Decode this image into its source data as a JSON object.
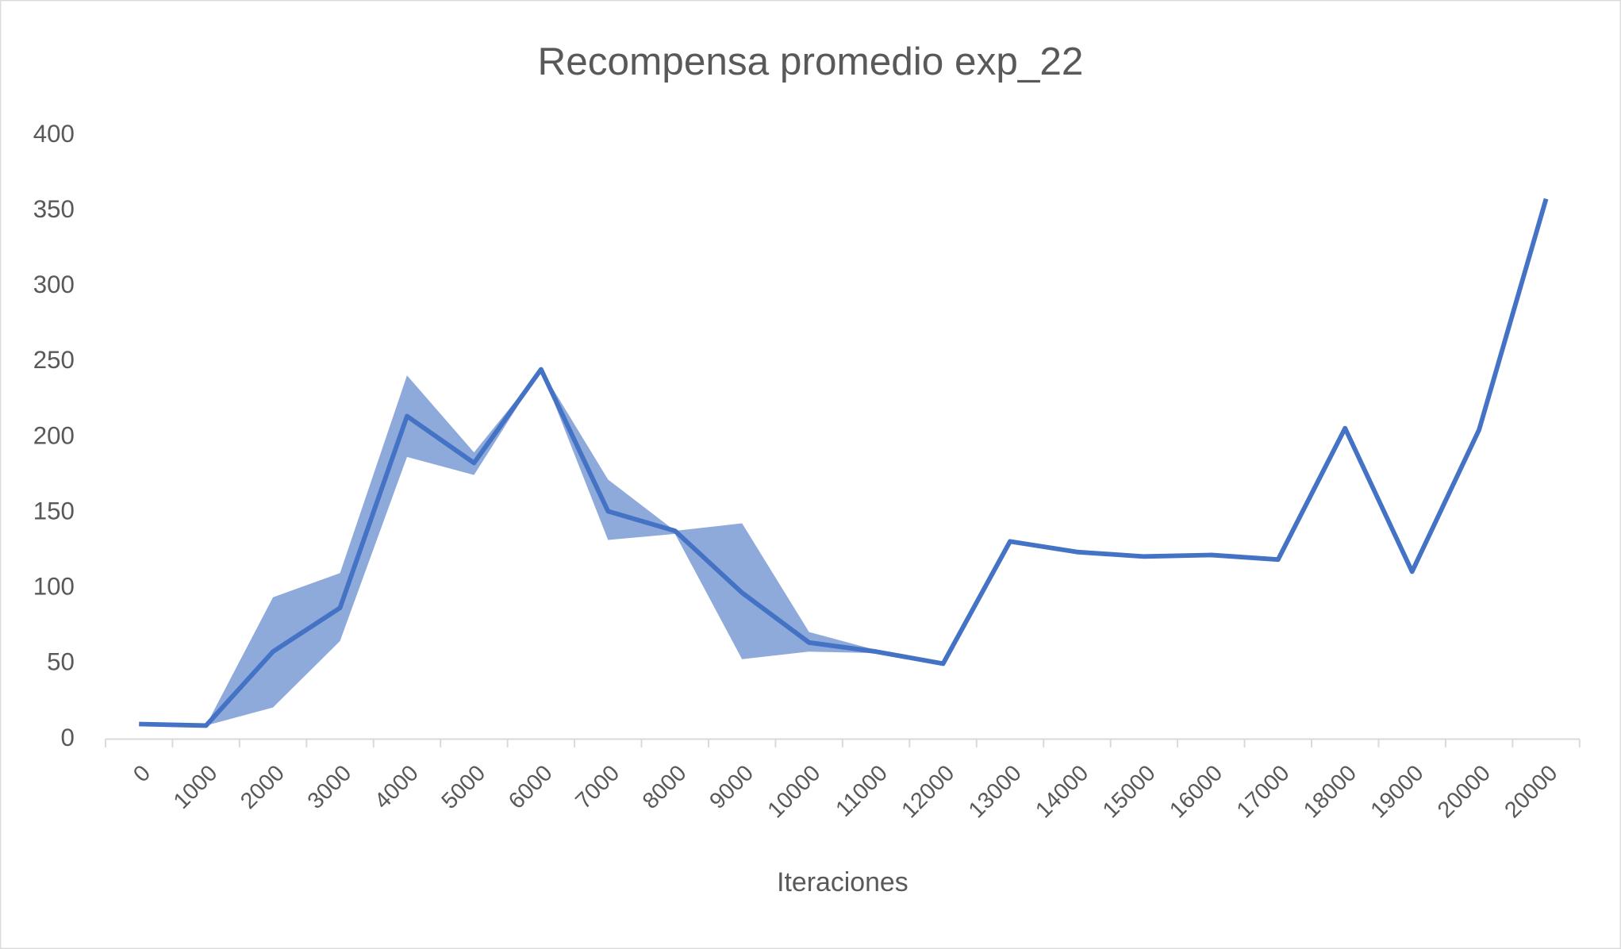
{
  "chart_data": {
    "type": "line",
    "title": "Recompensa promedio exp_22",
    "xlabel": "Iteraciones",
    "categories": [
      "0",
      "1000",
      "2000",
      "3000",
      "4000",
      "5000",
      "6000",
      "7000",
      "8000",
      "9000",
      "10000",
      "11000",
      "12000",
      "13000",
      "14000",
      "15000",
      "16000",
      "17000",
      "18000",
      "19000",
      "20000",
      "20000"
    ],
    "series": [
      {
        "color": "#4472c4",
        "values": [
          10,
          9,
          58,
          87,
          214,
          183,
          245,
          151,
          138,
          97,
          64,
          58,
          50,
          131,
          124,
          121,
          122,
          119,
          206,
          111,
          205,
          358
        ]
      }
    ],
    "band": {
      "color": "#8eaadb",
      "upper": [
        10,
        9,
        94,
        110,
        241,
        190,
        245,
        172,
        138,
        143,
        71,
        59,
        null,
        null,
        null,
        null,
        null,
        null,
        null,
        null,
        null,
        null
      ],
      "lower": [
        10,
        9,
        21,
        65,
        187,
        175,
        245,
        132,
        136,
        53,
        58,
        57,
        null,
        null,
        null,
        null,
        null,
        null,
        null,
        null,
        null,
        null
      ]
    },
    "ylim": [
      0,
      400
    ],
    "yticks": [
      0,
      50,
      100,
      150,
      200,
      250,
      300,
      350,
      400
    ],
    "grid": false
  }
}
